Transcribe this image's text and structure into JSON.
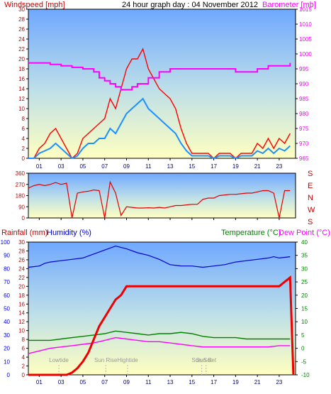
{
  "header": {
    "left_title": "Windspeed [mph]",
    "center_title": "24 hour graph day : 04 November 2012",
    "right_title": "Barometer [mb]"
  },
  "hour_labels": [
    "01",
    "03",
    "05",
    "07",
    "09",
    "11",
    "13",
    "15",
    "17",
    "19",
    "21",
    "23"
  ],
  "bottom_hour_labels": [
    "01",
    "03",
    "05",
    "07",
    "09",
    "11",
    "13",
    "15",
    "17",
    "19",
    "21",
    "23"
  ],
  "colors": {
    "wind_gust": "#ff0000",
    "wind_avg": "#1e90ff",
    "barometer": "#ff00ff",
    "direction": "#e00000",
    "humidity": "#0000cc",
    "rain": "#ee0000",
    "temperature": "#008000",
    "dewpoint": "#ff00ff",
    "left_axis_text": "#cc0000",
    "barometer_axis_text": "#ff00ff",
    "humidity_axis_text": "#0000cc",
    "temp_axis_text": "#008000"
  },
  "chart_data": [
    {
      "type": "line",
      "title": "24 hour graph day : 04 November 2012",
      "x_range_hours": [
        0,
        24.5
      ],
      "left_axis": {
        "label": "Windspeed [mph]",
        "ylim": [
          0,
          30
        ],
        "ticks": [
          0,
          2,
          4,
          6,
          8,
          10,
          12,
          14,
          16,
          18,
          20,
          22,
          24,
          26,
          28,
          30
        ]
      },
      "right_axis": {
        "label": "Barometer [mb]",
        "ylim": [
          965,
          1015
        ],
        "ticks": [
          965,
          970,
          975,
          980,
          985,
          990,
          995,
          1000,
          1005,
          1010,
          1015
        ]
      },
      "grid": false,
      "series": [
        {
          "axis": "left",
          "x": [
            0,
            0.5,
            1,
            1.5,
            2,
            2.5,
            3,
            3.5,
            4,
            4.5,
            5,
            5.5,
            6,
            6.5,
            7,
            7.5,
            8,
            8.5,
            9,
            9.5,
            10,
            10.5,
            11,
            11.5,
            12,
            12.5,
            13,
            13.5,
            14,
            14.5,
            15,
            15.5,
            16,
            16.5,
            17,
            17.5,
            18,
            18.5,
            19,
            19.5,
            20,
            20.5,
            21,
            21.5,
            22,
            22.5,
            23,
            23.5,
            24
          ],
          "values": [
            0,
            0,
            2,
            3,
            5,
            6,
            4,
            2,
            0,
            1,
            4,
            5,
            6,
            7,
            8,
            12,
            10,
            14,
            18,
            20,
            20,
            22,
            18,
            16,
            14,
            13,
            12,
            10,
            6,
            3,
            1,
            1,
            1,
            1,
            0,
            1,
            1,
            1,
            0,
            1,
            1,
            1,
            3,
            2,
            4,
            2,
            4,
            3,
            5
          ]
        },
        {
          "axis": "left",
          "x": [
            0,
            0.5,
            1,
            1.5,
            2,
            2.5,
            3,
            3.5,
            4,
            4.5,
            5,
            5.5,
            6,
            6.5,
            7,
            7.5,
            8,
            8.5,
            9,
            9.5,
            10,
            10.5,
            11,
            11.5,
            12,
            12.5,
            13,
            13.5,
            14,
            14.5,
            15,
            15.5,
            16,
            16.5,
            17,
            17.5,
            18,
            18.5,
            19,
            19.5,
            20,
            20.5,
            21,
            21.5,
            22,
            22.5,
            23,
            23.5,
            24
          ],
          "values": [
            0,
            0,
            1,
            1.5,
            2,
            3,
            2,
            1,
            0,
            0.5,
            2,
            3,
            3,
            4,
            4,
            6,
            5,
            7,
            9,
            10,
            11,
            12,
            10,
            9,
            8,
            7,
            6,
            5,
            3,
            1.5,
            0.5,
            0.5,
            0.5,
            0.5,
            0,
            0.5,
            0.5,
            0.5,
            0,
            0.5,
            0.5,
            0.5,
            1.5,
            1,
            2,
            1,
            2,
            1.5,
            2.5
          ]
        },
        {
          "axis": "right",
          "x": [
            0,
            1,
            2,
            3,
            4,
            5,
            6,
            6.5,
            7,
            7.5,
            8,
            8.5,
            9,
            9.5,
            10,
            11,
            12,
            13,
            14,
            15,
            16,
            17,
            18,
            19,
            20,
            21,
            22,
            23,
            24
          ],
          "values": [
            997,
            997,
            996.5,
            996,
            995.5,
            995,
            994,
            992,
            991,
            990,
            989,
            988,
            988,
            989,
            990,
            992,
            994,
            995,
            995,
            995,
            995,
            995,
            995,
            994,
            994,
            995,
            996,
            996,
            997
          ]
        }
      ]
    },
    {
      "type": "scatter",
      "title": "",
      "x_range_hours": [
        0,
        24.5
      ],
      "left_axis": {
        "ylim": [
          0,
          360
        ],
        "ticks": [
          0,
          90,
          180,
          270,
          360
        ]
      },
      "right_axis_labels": [
        "S",
        "E",
        "N",
        "W",
        "S"
      ],
      "series": [
        {
          "x": [
            0,
            0.5,
            1,
            1.5,
            2,
            2.5,
            3,
            3.5,
            4,
            4.5,
            5,
            5.5,
            6,
            6.5,
            7,
            7.5,
            8,
            8.5,
            9,
            9.5,
            10,
            10.5,
            11,
            11.5,
            12,
            12.5,
            13,
            13.5,
            14,
            14.5,
            15,
            15.5,
            16,
            16.5,
            17,
            17.5,
            18,
            18.5,
            19,
            19.5,
            20,
            20.5,
            21,
            21.5,
            22,
            22.5,
            23,
            23.5,
            24
          ],
          "values": [
            240,
            260,
            270,
            260,
            270,
            285,
            270,
            280,
            0,
            200,
            210,
            215,
            225,
            220,
            0,
            290,
            200,
            20,
            90,
            85,
            80,
            80,
            82,
            80,
            85,
            80,
            90,
            100,
            100,
            105,
            110,
            110,
            150,
            160,
            160,
            180,
            185,
            190,
            190,
            195,
            200,
            200,
            210,
            220,
            220,
            200,
            0,
            220,
            220
          ]
        }
      ]
    },
    {
      "type": "line",
      "title": "",
      "x_range_hours": [
        0,
        24.5
      ],
      "axis_labels": {
        "rain": "Rainfall (mm)",
        "humidity": "Humidity (%)",
        "temperature": "Temperature (°C)",
        "dewpoint": "Dew Point (°C)"
      },
      "humidity_axis": {
        "ylim": [
          0,
          100
        ],
        "ticks": [
          0,
          10,
          20,
          30,
          40,
          50,
          60,
          70,
          80,
          90,
          100
        ]
      },
      "rain_axis": {
        "ylim": [
          0,
          30
        ],
        "ticks": [
          0,
          2,
          4,
          6,
          8,
          10,
          12,
          14,
          16,
          18,
          20,
          22,
          24,
          26,
          28,
          30
        ]
      },
      "temp_axis": {
        "ylim": [
          -10,
          40
        ],
        "ticks": [
          -10,
          -5,
          0,
          5,
          10,
          15,
          20,
          25,
          30,
          35,
          40
        ]
      },
      "annotations": [
        {
          "text": "Lowtide",
          "x_hour": 2.8
        },
        {
          "text": "Sun Rise",
          "x_hour": 7.1
        },
        {
          "text": "Hightide",
          "x_hour": 9.1
        },
        {
          "text": "Sun Set",
          "x_hour": 16.3
        },
        {
          "text": "Sun Set",
          "x_hour": 15.9
        }
      ],
      "series": [
        {
          "axis": "humidity",
          "x": [
            0,
            1,
            1.5,
            2,
            3,
            4,
            5,
            6,
            7,
            8,
            9,
            10,
            11,
            12,
            13,
            14,
            15,
            16,
            17,
            18,
            19,
            20,
            21,
            22,
            22.5,
            23,
            24
          ],
          "values": [
            81,
            82,
            84,
            85,
            86,
            87,
            88,
            91,
            94,
            97,
            95,
            92,
            90,
            87,
            83,
            82,
            82,
            81,
            82,
            83,
            85,
            86,
            87,
            88,
            89,
            88,
            89
          ]
        },
        {
          "axis": "rain",
          "x": [
            0,
            1,
            2,
            3,
            3.5,
            4,
            4.5,
            5,
            5.5,
            6,
            6.5,
            7,
            7.5,
            8,
            8.5,
            9,
            10,
            11,
            12,
            13,
            14,
            15,
            16,
            17,
            18,
            19,
            20,
            21,
            22,
            23,
            23.5,
            24,
            24.3
          ],
          "values": [
            0,
            0,
            0,
            0,
            0,
            0.5,
            1.5,
            3,
            5,
            8,
            11,
            13,
            15,
            17,
            18,
            20,
            20,
            20,
            20,
            20,
            20,
            20,
            20,
            20,
            20,
            20,
            20,
            20,
            20,
            20,
            21,
            22,
            0
          ]
        },
        {
          "axis": "temp",
          "x": [
            0,
            1,
            2,
            3,
            4,
            5,
            6,
            7,
            8,
            9,
            10,
            11,
            12,
            13,
            14,
            15,
            16,
            17,
            18,
            19,
            20,
            21,
            22,
            23,
            24
          ],
          "values": [
            3,
            3,
            3,
            3.5,
            4,
            4.5,
            5,
            5.5,
            6.5,
            6,
            5.5,
            5,
            5.5,
            5.5,
            6,
            5.5,
            4.5,
            4,
            4,
            4,
            3.5,
            3.5,
            3.5,
            3.5,
            3.5
          ]
        },
        {
          "axis": "temp",
          "x": [
            0,
            1,
            2,
            3,
            4,
            5,
            6,
            7,
            8,
            9,
            10,
            11,
            12,
            13,
            14,
            15,
            16,
            17,
            18,
            19,
            20,
            21,
            22,
            23,
            24
          ],
          "values": [
            -2,
            -1,
            0,
            0.5,
            1,
            1.5,
            2,
            3,
            4,
            3.5,
            3,
            2.5,
            2.5,
            2,
            1.5,
            1,
            0.5,
            0.5,
            0.5,
            0.5,
            0.5,
            0.5,
            0.5,
            1,
            1
          ]
        }
      ]
    }
  ]
}
